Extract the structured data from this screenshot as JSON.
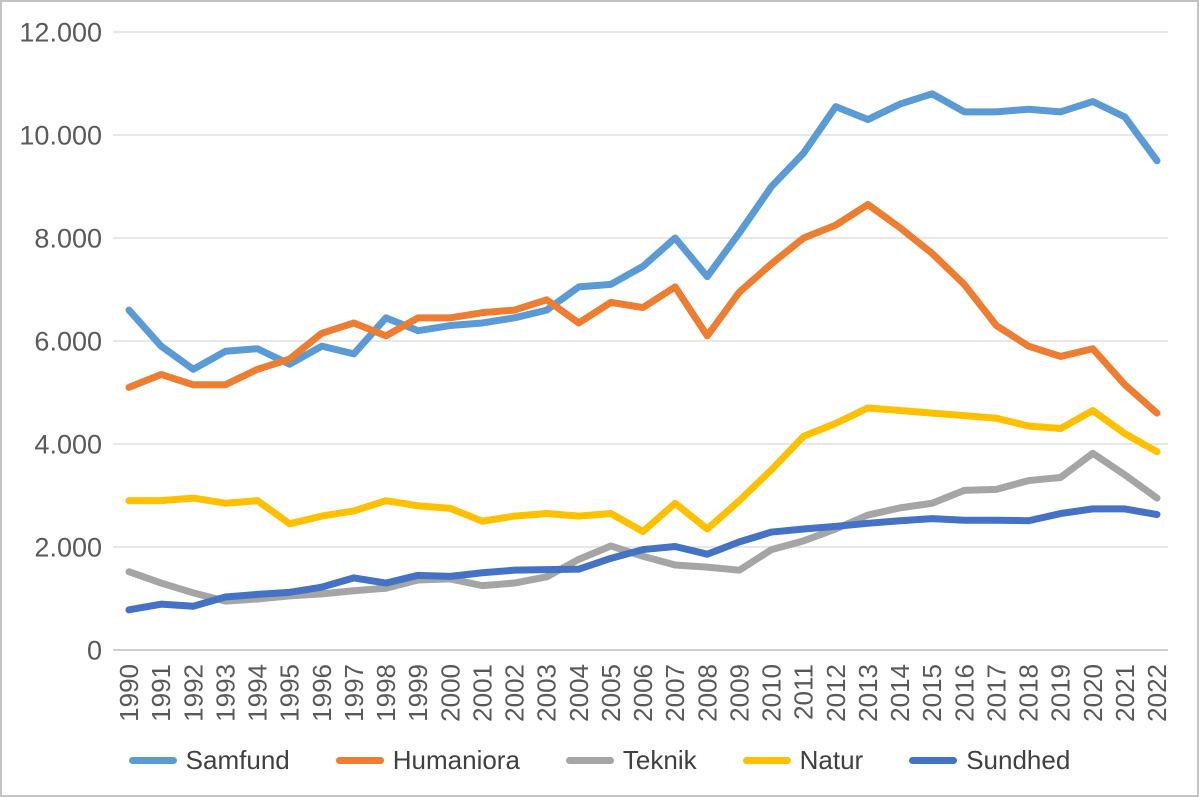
{
  "chart_data": {
    "type": "line",
    "title": "",
    "xlabel": "",
    "ylabel": "",
    "ylim": [
      0,
      12000
    ],
    "y_tick_values": [
      0,
      2000,
      4000,
      6000,
      8000,
      10000,
      12000
    ],
    "y_tick_labels": [
      "0",
      "2.000",
      "4.000",
      "6.000",
      "8.000",
      "10.000",
      "12.000"
    ],
    "grid": true,
    "legend_position": "bottom",
    "x": [
      "1990",
      "1991",
      "1992",
      "1993",
      "1994",
      "1995",
      "1996",
      "1997",
      "1998",
      "1999",
      "2000",
      "2001",
      "2002",
      "2003",
      "2004",
      "2005",
      "2006",
      "2007",
      "2008",
      "2009",
      "2010",
      "2011",
      "2012",
      "2013",
      "2014",
      "2015",
      "2016",
      "2017",
      "2018",
      "2019",
      "2020",
      "2021",
      "2022"
    ],
    "series": [
      {
        "name": "Samfund",
        "color": "#5B9BD5",
        "values": [
          6600,
          5900,
          5450,
          5800,
          5850,
          5550,
          5900,
          5750,
          6450,
          6200,
          6300,
          6350,
          6450,
          6600,
          7050,
          7100,
          7450,
          8000,
          7250,
          8100,
          9000,
          9650,
          10550,
          10300,
          10600,
          10800,
          10450,
          10450,
          10500,
          10450,
          10650,
          10350,
          9500
        ]
      },
      {
        "name": "Humaniora",
        "color": "#ED7D31",
        "values": [
          5100,
          5350,
          5150,
          5150,
          5450,
          5650,
          6150,
          6350,
          6100,
          6450,
          6450,
          6550,
          6600,
          6800,
          6350,
          6750,
          6650,
          7050,
          6100,
          6950,
          7500,
          8000,
          8250,
          8650,
          8200,
          7700,
          7100,
          6300,
          5900,
          5700,
          5850,
          5150,
          4600
        ]
      },
      {
        "name": "Teknik",
        "color": "#A5A5A5",
        "values": [
          1520,
          1300,
          1110,
          950,
          990,
          1050,
          1090,
          1150,
          1200,
          1360,
          1380,
          1250,
          1300,
          1420,
          1760,
          2020,
          1820,
          1650,
          1610,
          1550,
          1950,
          2120,
          2350,
          2620,
          2760,
          2850,
          3100,
          3120,
          3290,
          3350,
          3820,
          3400,
          2950
        ]
      },
      {
        "name": "Natur",
        "color": "#FFC000",
        "values": [
          2900,
          2900,
          2950,
          2850,
          2900,
          2450,
          2600,
          2700,
          2900,
          2800,
          2750,
          2500,
          2600,
          2650,
          2600,
          2650,
          2300,
          2850,
          2350,
          2900,
          3500,
          4150,
          4400,
          4700,
          4650,
          4600,
          4550,
          4500,
          4350,
          4300,
          4650,
          4200,
          3850
        ]
      },
      {
        "name": "Sundhed",
        "color": "#4472C4",
        "values": [
          780,
          890,
          850,
          1030,
          1080,
          1120,
          1220,
          1400,
          1300,
          1450,
          1430,
          1500,
          1550,
          1560,
          1570,
          1780,
          1950,
          2010,
          1860,
          2100,
          2290,
          2350,
          2400,
          2460,
          2510,
          2550,
          2520,
          2520,
          2510,
          2650,
          2740,
          2740,
          2630
        ]
      }
    ],
    "style": {
      "gridline_color": "#D9D9D9",
      "baseline_color": "#BFBFBF",
      "tick_label_color": "#595959",
      "line_width": 7
    }
  }
}
